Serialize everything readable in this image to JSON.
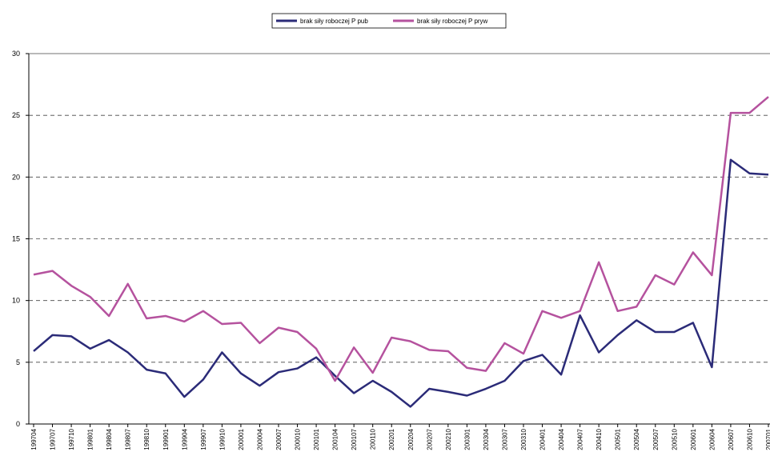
{
  "chart_data": {
    "type": "line",
    "categories": [
      "199704",
      "199707",
      "199710",
      "199801",
      "199804",
      "199807",
      "199810",
      "199901",
      "199904",
      "199907",
      "199910",
      "200001",
      "200004",
      "200007",
      "200010",
      "200101",
      "200104",
      "200107",
      "200110",
      "200201",
      "200204",
      "200207",
      "200210",
      "200301",
      "200304",
      "200307",
      "200310",
      "200401",
      "200404",
      "200407",
      "200410",
      "200501",
      "200504",
      "200507",
      "200510",
      "200601",
      "200604",
      "200607",
      "200610",
      "200701"
    ],
    "series": [
      {
        "name": "brak siły roboczej P pub",
        "color": "#2b2b78",
        "values": [
          5.9,
          7.2,
          7.1,
          6.1,
          6.8,
          5.8,
          4.4,
          4.1,
          2.2,
          3.6,
          5.8,
          4.1,
          3.1,
          4.2,
          4.5,
          5.4,
          3.9,
          2.5,
          3.5,
          2.6,
          1.4,
          2.85,
          2.6,
          2.3,
          2.85,
          3.5,
          5.1,
          5.6,
          4.0,
          8.8,
          5.8,
          7.2,
          8.4,
          7.45,
          7.45,
          8.2,
          4.6,
          21.4,
          20.3,
          20.2
        ]
      },
      {
        "name": "brak siły roboczej P pryw",
        "color": "#b5529e",
        "values": [
          12.1,
          12.4,
          11.2,
          10.3,
          8.75,
          11.35,
          8.55,
          8.75,
          8.3,
          9.15,
          8.1,
          8.2,
          6.55,
          7.8,
          7.45,
          6.1,
          3.5,
          6.2,
          4.15,
          7.0,
          6.7,
          6.0,
          5.9,
          4.55,
          4.3,
          6.55,
          5.7,
          9.15,
          8.6,
          9.15,
          13.1,
          9.15,
          9.5,
          12.05,
          11.3,
          13.9,
          12.05,
          25.2,
          25.2,
          26.5
        ]
      }
    ],
    "ylim": [
      0,
      30
    ],
    "yticks": [
      0,
      5,
      10,
      15,
      20,
      25,
      30
    ],
    "grid": true,
    "legend": "top"
  }
}
